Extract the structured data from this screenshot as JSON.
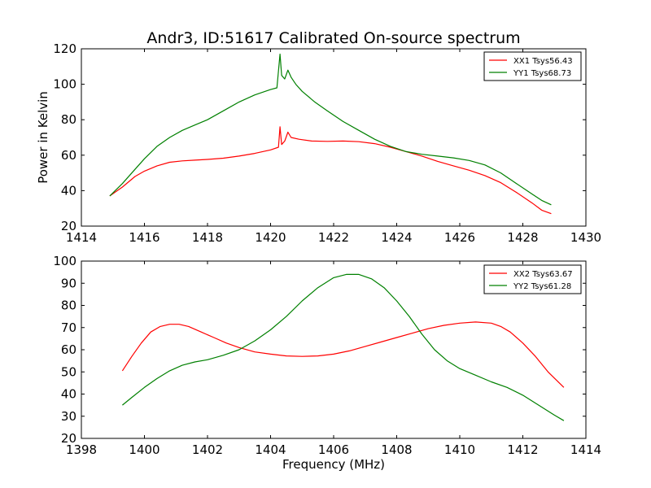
{
  "figure": {
    "title": "Andr3, ID:51617 Calibrated On-source spectrum"
  },
  "chart_data": [
    {
      "type": "line",
      "title": "Andr3, ID:51617 Calibrated On-source spectrum",
      "xlabel": "",
      "ylabel": "Power in Kelvin",
      "xlim": [
        1414,
        1430
      ],
      "ylim": [
        20,
        120
      ],
      "xticks": [
        1414,
        1416,
        1418,
        1420,
        1422,
        1424,
        1426,
        1428,
        1430
      ],
      "yticks": [
        20,
        40,
        60,
        80,
        100,
        120
      ],
      "legend_position": "top-right",
      "grid": false,
      "series": [
        {
          "name": "XX1 Tsys56.43",
          "color": "#ff0000",
          "x": [
            1414.9,
            1415.3,
            1415.7,
            1416.0,
            1416.4,
            1416.8,
            1417.2,
            1417.6,
            1418.0,
            1418.5,
            1419.0,
            1419.5,
            1420.0,
            1420.25,
            1420.3,
            1420.35,
            1420.45,
            1420.55,
            1420.65,
            1420.9,
            1421.3,
            1421.8,
            1422.3,
            1422.8,
            1423.3,
            1423.8,
            1424.3,
            1424.8,
            1425.3,
            1425.8,
            1426.3,
            1426.8,
            1427.3,
            1427.8,
            1428.3,
            1428.6,
            1428.9
          ],
          "y": [
            37,
            42,
            48,
            51,
            54,
            56,
            56.8,
            57.2,
            57.6,
            58.3,
            59.5,
            61,
            63,
            64.5,
            76,
            66,
            68,
            73,
            70,
            69,
            68,
            67.8,
            68,
            67.6,
            66.5,
            64.5,
            62,
            59.5,
            56.5,
            54,
            51.5,
            48.5,
            44.5,
            39,
            33,
            29,
            27
          ]
        },
        {
          "name": "YY1 Tsys68.73",
          "color": "#008000",
          "x": [
            1414.9,
            1415.3,
            1415.7,
            1416.0,
            1416.4,
            1416.8,
            1417.2,
            1417.6,
            1418.0,
            1418.5,
            1419.0,
            1419.5,
            1420.0,
            1420.2,
            1420.3,
            1420.35,
            1420.45,
            1420.55,
            1420.65,
            1420.8,
            1421.0,
            1421.4,
            1421.8,
            1422.3,
            1422.8,
            1423.3,
            1423.8,
            1424.3,
            1424.8,
            1425.3,
            1425.8,
            1426.3,
            1426.8,
            1427.3,
            1427.8,
            1428.3,
            1428.6,
            1428.9
          ],
          "y": [
            37,
            44,
            52,
            58,
            65,
            70,
            74,
            77,
            80,
            85,
            90,
            94,
            97,
            98,
            117,
            105,
            103,
            108,
            104,
            100,
            96,
            90,
            85,
            79,
            74,
            69,
            65,
            62,
            60.5,
            59.5,
            58.5,
            57,
            54.5,
            50,
            44,
            38,
            34.5,
            32
          ]
        }
      ]
    },
    {
      "type": "line",
      "title": "",
      "xlabel": "Frequency (MHz)",
      "ylabel": "",
      "xlim": [
        1398,
        1414
      ],
      "ylim": [
        20,
        100
      ],
      "xticks": [
        1398,
        1400,
        1402,
        1404,
        1406,
        1408,
        1410,
        1412,
        1414
      ],
      "yticks": [
        20,
        30,
        40,
        50,
        60,
        70,
        80,
        90,
        100
      ],
      "legend_position": "top-right",
      "grid": false,
      "series": [
        {
          "name": "XX2 Tsys63.67",
          "color": "#ff0000",
          "x": [
            1399.3,
            1399.6,
            1399.9,
            1400.2,
            1400.5,
            1400.8,
            1401.1,
            1401.4,
            1401.8,
            1402.2,
            1402.6,
            1403.0,
            1403.5,
            1404.0,
            1404.5,
            1405.0,
            1405.5,
            1406.0,
            1406.5,
            1407.0,
            1407.5,
            1408.0,
            1408.5,
            1409.0,
            1409.5,
            1410.0,
            1410.5,
            1411.0,
            1411.3,
            1411.6,
            1412.0,
            1412.4,
            1412.8,
            1413.3
          ],
          "y": [
            50.5,
            57,
            63,
            68,
            70.5,
            71.5,
            71.5,
            70.5,
            68,
            65.5,
            63,
            61,
            59,
            58,
            57.2,
            57,
            57.2,
            58,
            59.5,
            61.5,
            63.5,
            65.5,
            67.5,
            69.5,
            71,
            72,
            72.5,
            72,
            70.5,
            68,
            63,
            57,
            50,
            43
          ]
        },
        {
          "name": "YY2 Tsys61.28",
          "color": "#008000",
          "x": [
            1399.3,
            1399.6,
            1400.0,
            1400.4,
            1400.8,
            1401.2,
            1401.6,
            1402.0,
            1402.5,
            1403.0,
            1403.5,
            1404.0,
            1404.5,
            1405.0,
            1405.5,
            1406.0,
            1406.4,
            1406.8,
            1407.2,
            1407.6,
            1408.0,
            1408.4,
            1408.8,
            1409.2,
            1409.6,
            1410.0,
            1410.5,
            1411.0,
            1411.5,
            1412.0,
            1412.5,
            1413.0,
            1413.3
          ],
          "y": [
            35,
            38.5,
            43,
            47,
            50.5,
            53,
            54.5,
            55.5,
            57.5,
            60,
            64,
            69,
            75,
            82,
            88,
            92.5,
            94,
            94,
            92,
            88,
            82,
            75,
            67,
            60,
            55,
            51.5,
            48.5,
            45.5,
            43,
            39.5,
            35,
            30.5,
            28
          ]
        }
      ]
    }
  ]
}
